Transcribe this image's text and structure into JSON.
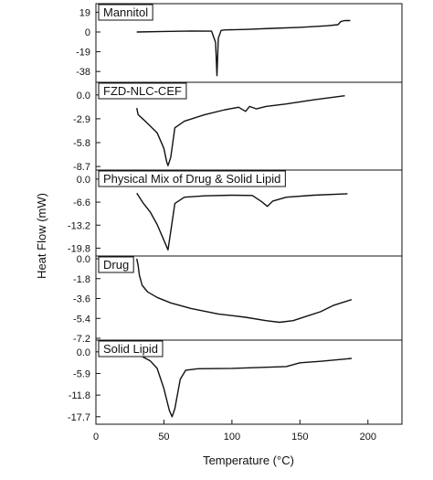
{
  "chart_data": {
    "type": "line",
    "xlabel": "Temperature (°C)",
    "ylabel": "Heat Flow (mW)",
    "xlim": [
      0,
      225
    ],
    "xticks": [
      "0",
      "50",
      "100",
      "150",
      "200"
    ],
    "panels": [
      {
        "name": "Mannitol",
        "ylim": [
          -44,
          22
        ],
        "yticks": [
          19,
          0,
          -19,
          -38
        ],
        "yticklabels": [
          "19",
          "0",
          "-19",
          "-38"
        ],
        "x": [
          30,
          50,
          70,
          85,
          88,
          89,
          90,
          92,
          95,
          110,
          130,
          150,
          170,
          178,
          180,
          183,
          187
        ],
        "y": [
          0,
          0.5,
          1,
          0.8,
          -10,
          -42,
          -6,
          1.5,
          2,
          2.5,
          3.5,
          4.5,
          6,
          7,
          10,
          11,
          11
        ]
      },
      {
        "name": "FZD-NLC-CEF",
        "ylim": [
          -8.8,
          0.2
        ],
        "yticks": [
          0.0,
          -2.9,
          -5.8,
          -8.7
        ],
        "yticklabels": [
          "0.0",
          "-2.9",
          "-5.8",
          "-8.7"
        ],
        "x": [
          30,
          31,
          35,
          40,
          45,
          50,
          52,
          53,
          55,
          58,
          65,
          80,
          95,
          105,
          110,
          113,
          118,
          125,
          140,
          160,
          183
        ],
        "y": [
          -1.6,
          -2.4,
          -3.0,
          -3.8,
          -4.6,
          -6.5,
          -8.1,
          -8.6,
          -7.6,
          -4.0,
          -3.2,
          -2.4,
          -1.8,
          -1.5,
          -2.0,
          -1.4,
          -1.7,
          -1.4,
          -1.1,
          -0.6,
          -0.1
        ]
      },
      {
        "name": "Physical Mix of Drug & Solid Lipid",
        "ylim": [
          -21,
          0.5
        ],
        "yticks": [
          0.0,
          -6.6,
          -13.2,
          -19.8
        ],
        "yticklabels": [
          "0.0",
          "-6.6",
          "-13.2",
          "-19.8"
        ],
        "x": [
          30,
          35,
          40,
          45,
          50,
          53,
          55,
          58,
          65,
          80,
          100,
          115,
          122,
          126,
          130,
          140,
          160,
          185
        ],
        "y": [
          -4.0,
          -7.0,
          -9.5,
          -13.0,
          -17.5,
          -20.3,
          -15.0,
          -7.0,
          -5.2,
          -4.8,
          -4.6,
          -4.7,
          -6.5,
          -7.8,
          -6.3,
          -5.2,
          -4.6,
          -4.2
        ]
      },
      {
        "name": "Drug",
        "ylim": [
          -7.2,
          0.0
        ],
        "yticks": [
          0.0,
          -1.8,
          -3.6,
          -5.4,
          -7.2
        ],
        "yticklabels": [
          "0.0",
          "-1.8",
          "-3.6",
          "-5.4",
          "-7.2"
        ],
        "x": [
          30,
          31,
          32,
          34,
          38,
          45,
          55,
          70,
          90,
          110,
          125,
          135,
          145,
          155,
          165,
          175,
          188
        ],
        "y": [
          0,
          -0.6,
          -1.5,
          -2.4,
          -3.0,
          -3.5,
          -4.0,
          -4.5,
          -5.0,
          -5.3,
          -5.6,
          -5.75,
          -5.6,
          -5.2,
          -4.8,
          -4.2,
          -3.7
        ]
      },
      {
        "name": "Solid Lipid",
        "ylim": [
          -18.5,
          1.2
        ],
        "yticks": [
          0.0,
          -5.9,
          -11.8,
          -17.7
        ],
        "yticklabels": [
          "0.0",
          "-5.9",
          "-11.8",
          "-17.7"
        ],
        "x": [
          30,
          35,
          40,
          45,
          50,
          54,
          56,
          58,
          62,
          66,
          75,
          100,
          140,
          150,
          165,
          188
        ],
        "y": [
          0,
          -1.5,
          -2.5,
          -4.5,
          -10.0,
          -16.0,
          -17.7,
          -15.5,
          -7.5,
          -5.0,
          -4.6,
          -4.5,
          -4.0,
          -3.0,
          -2.6,
          -1.8
        ]
      }
    ]
  }
}
